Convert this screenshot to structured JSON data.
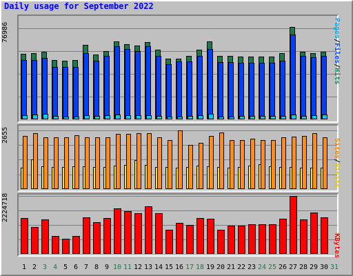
{
  "title": "Daily usage for September 2022",
  "legends": {
    "hits_panel": [
      {
        "label": "Pages",
        "color": "#00AAEE"
      },
      {
        "label": "/",
        "color": "#000000"
      },
      {
        "label": "Files",
        "color": "#0055FF"
      },
      {
        "label": "/",
        "color": "#000000"
      },
      {
        "label": "Hits",
        "color": "#1A8A5A"
      }
    ],
    "sites_panel": [
      {
        "label": "Sites",
        "color": "#FF8800"
      },
      {
        "label": "/",
        "color": "#000000"
      },
      {
        "label": "Visits",
        "color": "#DDCC00"
      }
    ],
    "kbytes_panel": [
      {
        "label": "KBytes",
        "color": "#FF0000"
      }
    ]
  },
  "colors": {
    "hits": "#1A7A4A",
    "files": "#0040FF",
    "pages": "#00D0F0",
    "sites": "#FF8C1A",
    "visits": "#FFE800",
    "kbytes": "#FF0000",
    "weekday_label": "#000000",
    "weekend_label": "#1A7A4A"
  },
  "chart_data": [
    {
      "type": "bar",
      "ymax_label": "76986",
      "ylim": [
        0,
        76986
      ],
      "categories": [
        "1",
        "2",
        "3",
        "4",
        "5",
        "6",
        "7",
        "8",
        "9",
        "10",
        "11",
        "12",
        "13",
        "14",
        "15",
        "16",
        "17",
        "18",
        "19",
        "20",
        "21",
        "22",
        "23",
        "24",
        "25",
        "26",
        "27",
        "28",
        "29",
        "30",
        "31"
      ],
      "weekend_days": [
        "3",
        "4",
        "10",
        "11",
        "17",
        "18",
        "24",
        "25",
        "31"
      ],
      "series": [
        {
          "name": "Hits",
          "values": [
            55600,
            56000,
            57000,
            50200,
            49600,
            50400,
            63000,
            55000,
            58000,
            66000,
            63400,
            62600,
            65200,
            58700,
            51600,
            51600,
            53700,
            58700,
            66000,
            53700,
            53700,
            53200,
            53200,
            53200,
            53200,
            56000,
            78000,
            57000,
            56100,
            57400,
            0
          ]
        },
        {
          "name": "Files",
          "values": [
            50300,
            50400,
            51900,
            44400,
            44400,
            44400,
            55800,
            49800,
            53700,
            62000,
            59200,
            57800,
            61800,
            53500,
            46700,
            48700,
            48700,
            53600,
            59200,
            48300,
            48300,
            47900,
            47900,
            47900,
            47900,
            49400,
            72000,
            53700,
            52200,
            53700,
            0
          ]
        },
        {
          "name": "Pages",
          "values": [
            3450,
            3940,
            4400,
            2880,
            2500,
            2520,
            3300,
            2800,
            3530,
            3930,
            3560,
            3420,
            3750,
            2910,
            2500,
            2520,
            2630,
            3360,
            4620,
            2610,
            2600,
            2720,
            2750,
            2760,
            2950,
            3010,
            3950,
            3200,
            3650,
            3820,
            0
          ]
        }
      ]
    },
    {
      "type": "bar",
      "ymax_label": "2655",
      "ylim": [
        0,
        2655
      ],
      "categories": [
        "1",
        "2",
        "3",
        "4",
        "5",
        "6",
        "7",
        "8",
        "9",
        "10",
        "11",
        "12",
        "13",
        "14",
        "15",
        "16",
        "17",
        "18",
        "19",
        "20",
        "21",
        "22",
        "23",
        "24",
        "25",
        "26",
        "27",
        "28",
        "29",
        "30",
        "31"
      ],
      "series": [
        {
          "name": "Sites",
          "values": [
            2400,
            2520,
            2350,
            2350,
            2350,
            2440,
            2350,
            2350,
            2350,
            2490,
            2490,
            2530,
            2530,
            2350,
            2230,
            2650,
            2000,
            2100,
            2400,
            2550,
            2230,
            2230,
            2280,
            2230,
            2230,
            2350,
            2370,
            2420,
            2520,
            2350,
            0
          ]
        },
        {
          "name": "Visits",
          "values": [
            980,
            1340,
            1040,
            990,
            1010,
            1030,
            1020,
            1010,
            1010,
            1060,
            1080,
            1320,
            1080,
            1000,
            990,
            960,
            1000,
            1060,
            1030,
            1000,
            980,
            1000,
            1050,
            1110,
            1030,
            990,
            1010,
            980,
            970,
            980,
            0
          ]
        }
      ]
    },
    {
      "type": "bar",
      "ymax_label": "2224718",
      "ylim": [
        0,
        2224718
      ],
      "categories": [
        "1",
        "2",
        "3",
        "4",
        "5",
        "6",
        "7",
        "8",
        "9",
        "10",
        "11",
        "12",
        "13",
        "14",
        "15",
        "16",
        "17",
        "18",
        "19",
        "20",
        "21",
        "22",
        "23",
        "24",
        "25",
        "26",
        "27",
        "28",
        "29",
        "30",
        "31"
      ],
      "series": [
        {
          "name": "KBytes",
          "values": [
            1370000,
            1020000,
            1320000,
            700000,
            580000,
            680000,
            1400000,
            1230000,
            1390000,
            1750000,
            1650000,
            1570000,
            1830000,
            1560000,
            920000,
            1200000,
            1120000,
            1370000,
            1360000,
            920000,
            1090000,
            1090000,
            1140000,
            1140000,
            1150000,
            1340000,
            2224718,
            1330000,
            1580000,
            1400000,
            0
          ]
        }
      ]
    }
  ]
}
